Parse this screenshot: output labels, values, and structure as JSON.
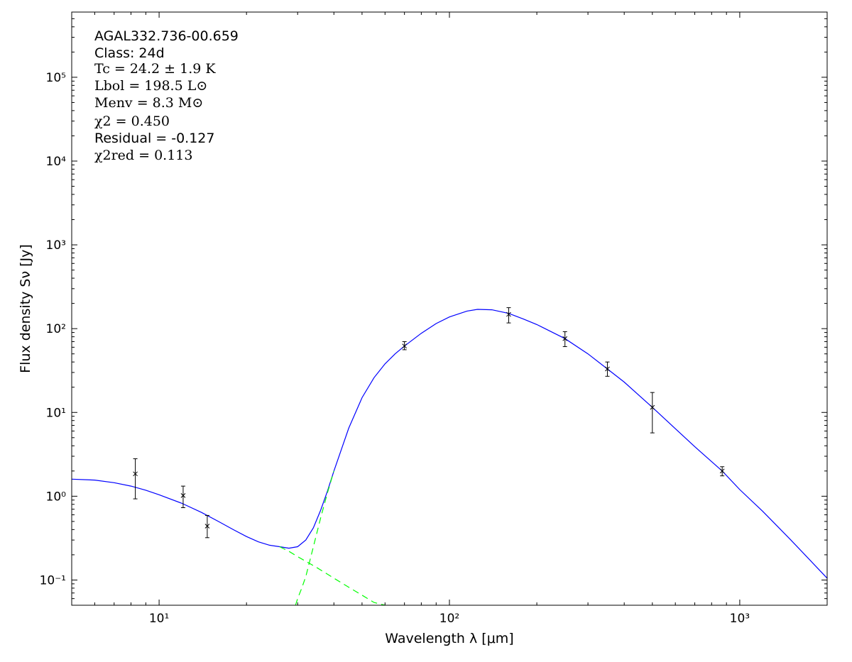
{
  "annotations": {
    "source_name": "AGAL332.736-00.659",
    "class_label": "Class: 24d",
    "tc": "Tc = 24.2 ± 1.9 K",
    "lbol": "Lbol = 198.5 L⊙",
    "menv": "Menv = 8.3 M⊙",
    "chi2": "χ2 = 0.450",
    "residual": "Residual = -0.127",
    "chi2_red": "χ2red = 0.113"
  },
  "chart_data": {
    "type": "scatter",
    "xlabel": "Wavelength λ [μm]",
    "ylabel": "Flux density Sν [Jy]",
    "xscale": "log",
    "yscale": "log",
    "xlim": [
      5,
      2000
    ],
    "ylim": [
      0.05,
      600000
    ],
    "grid": false,
    "x_ticks": [
      {
        "value": 10,
        "label": "10¹"
      },
      {
        "value": 100,
        "label": "10²"
      },
      {
        "value": 1000,
        "label": "10³"
      }
    ],
    "y_ticks": [
      {
        "value": 0.1,
        "label": "10⁻¹"
      },
      {
        "value": 1,
        "label": "10⁰"
      },
      {
        "value": 10,
        "label": "10¹"
      },
      {
        "value": 100,
        "label": "10²"
      },
      {
        "value": 1000,
        "label": "10³"
      },
      {
        "value": 10000,
        "label": "10⁴"
      },
      {
        "value": 100000,
        "label": "10⁵"
      }
    ],
    "observations": [
      {
        "x": 8.28,
        "y": 1.85,
        "ylow": 0.93,
        "yhigh": 2.8
      },
      {
        "x": 12.1,
        "y": 1.02,
        "ylow": 0.73,
        "yhigh": 1.32
      },
      {
        "x": 14.65,
        "y": 0.44,
        "ylow": 0.32,
        "yhigh": 0.59
      },
      {
        "x": 70,
        "y": 62,
        "ylow": 56,
        "yhigh": 70
      },
      {
        "x": 160,
        "y": 148,
        "ylow": 117,
        "yhigh": 178
      },
      {
        "x": 250,
        "y": 76,
        "ylow": 61,
        "yhigh": 92
      },
      {
        "x": 350,
        "y": 33,
        "ylow": 27,
        "yhigh": 40
      },
      {
        "x": 500,
        "y": 11.5,
        "ylow": 5.7,
        "yhigh": 17.3
      },
      {
        "x": 870,
        "y": 2.0,
        "ylow": 1.75,
        "yhigh": 2.25
      }
    ],
    "series": [
      {
        "style": "solid",
        "color": "#0000ff",
        "points": [
          [
            5,
            1.6
          ],
          [
            6,
            1.56
          ],
          [
            7,
            1.45
          ],
          [
            8,
            1.32
          ],
          [
            9,
            1.18
          ],
          [
            10,
            1.04
          ],
          [
            12,
            0.82
          ],
          [
            14,
            0.64
          ],
          [
            16,
            0.5
          ],
          [
            18,
            0.4
          ],
          [
            20,
            0.33
          ],
          [
            22,
            0.285
          ],
          [
            24,
            0.26
          ],
          [
            26,
            0.25
          ],
          [
            28,
            0.24
          ],
          [
            30,
            0.25
          ],
          [
            32,
            0.3
          ],
          [
            34,
            0.42
          ],
          [
            36,
            0.68
          ],
          [
            38,
            1.15
          ],
          [
            40,
            2.0
          ],
          [
            45,
            6.5
          ],
          [
            50,
            15
          ],
          [
            55,
            26
          ],
          [
            60,
            38
          ],
          [
            65,
            50
          ],
          [
            70,
            62
          ],
          [
            80,
            88
          ],
          [
            90,
            115
          ],
          [
            100,
            138
          ],
          [
            115,
            162
          ],
          [
            125,
            170
          ],
          [
            140,
            168
          ],
          [
            160,
            152
          ],
          [
            180,
            130
          ],
          [
            200,
            112
          ],
          [
            250,
            76
          ],
          [
            300,
            50
          ],
          [
            350,
            33
          ],
          [
            400,
            23
          ],
          [
            500,
            11.5
          ],
          [
            600,
            6.4
          ],
          [
            700,
            3.9
          ],
          [
            870,
            2.0
          ],
          [
            1000,
            1.2
          ],
          [
            1200,
            0.66
          ],
          [
            1500,
            0.3
          ],
          [
            2000,
            0.105
          ]
        ]
      },
      {
        "style": "dashed",
        "color": "#00ff00",
        "points": [
          [
            26,
            0.25
          ],
          [
            28,
            0.22
          ],
          [
            30,
            0.19
          ],
          [
            35,
            0.14
          ],
          [
            40,
            0.105
          ],
          [
            45,
            0.082
          ],
          [
            50,
            0.066
          ],
          [
            55,
            0.054
          ],
          [
            60,
            0.046
          ]
        ]
      },
      {
        "style": "dashed",
        "color": "#00ff00",
        "points": [
          [
            29.5,
            0.05
          ],
          [
            30,
            0.06
          ],
          [
            31,
            0.08
          ],
          [
            32,
            0.11
          ],
          [
            34,
            0.25
          ],
          [
            36,
            0.55
          ],
          [
            38,
            1.1
          ],
          [
            40,
            2.0
          ]
        ]
      }
    ]
  }
}
